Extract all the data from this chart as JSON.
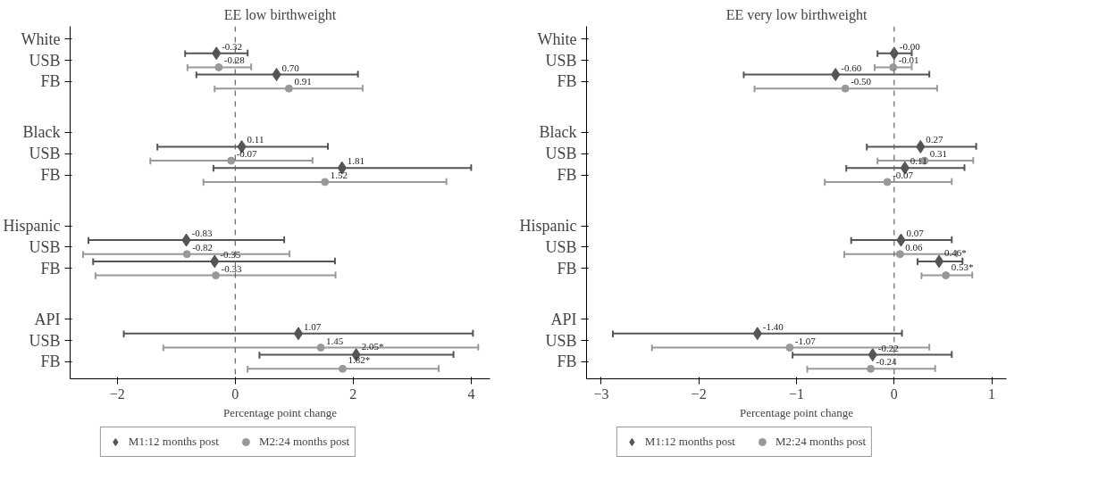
{
  "chart_data": [
    {
      "type": "scatter",
      "orientation": "horizontal",
      "title": "EE low birthweight",
      "xlabel": "Percentage point change",
      "categories": [
        "White",
        "USB",
        "FB",
        "Black",
        "USB",
        "FB",
        "Hispanic",
        "USB",
        "FB",
        "API",
        "USB",
        "FB"
      ],
      "xlim": [
        -2.8,
        4.32
      ],
      "xticks": [
        -2,
        0,
        2,
        4
      ],
      "legend": "bottom",
      "grid": false,
      "ref_lines": [
        {
          "axis": "x",
          "value": 0,
          "line_style": "dashed",
          "color": "#666666"
        }
      ],
      "series": [
        {
          "name": "M1:12 months post",
          "color": "#555555",
          "marker": "diamond",
          "values": [
            null,
            -0.32,
            0.7,
            null,
            0.11,
            1.81,
            null,
            -0.83,
            -0.35,
            null,
            1.07,
            2.05
          ],
          "errors": [
            null,
            [
              -0.85,
              0.21
            ],
            [
              -0.66,
              2.08
            ],
            null,
            [
              -1.32,
              1.57
            ],
            [
              -0.37,
              4.0
            ],
            null,
            [
              -2.49,
              0.83
            ],
            [
              -2.41,
              1.69
            ],
            null,
            [
              -1.89,
              4.03
            ],
            [
              0.41,
              3.7
            ]
          ],
          "value_labels": [
            null,
            "-0.32",
            "0.70",
            null,
            "0.11",
            "1.81",
            null,
            "-0.83",
            "-0.35",
            null,
            "1.07",
            "2.05*"
          ]
        },
        {
          "name": "M2:24 months post",
          "color": "#999999",
          "marker": "circle",
          "values": [
            null,
            -0.28,
            0.91,
            null,
            -0.07,
            1.52,
            null,
            -0.82,
            -0.33,
            null,
            1.45,
            1.82
          ],
          "errors": [
            null,
            [
              -0.81,
              0.27
            ],
            [
              -0.35,
              2.16
            ],
            null,
            [
              -1.44,
              1.31
            ],
            [
              -0.54,
              3.58
            ],
            null,
            [
              -2.58,
              0.92
            ],
            [
              -2.37,
              1.7
            ],
            null,
            [
              -1.22,
              4.12
            ],
            [
              0.21,
              3.45
            ]
          ],
          "value_labels": [
            null,
            "-0.28",
            "0.91",
            null,
            "-0.07",
            "1.52",
            null,
            "-0.82",
            "-0.33",
            null,
            "1.45",
            "1.82*"
          ]
        }
      ]
    },
    {
      "type": "scatter",
      "orientation": "horizontal",
      "title": "EE very low birthweight",
      "xlabel": "Percentage point change",
      "categories": [
        "White",
        "USB",
        "FB",
        "Black",
        "USB",
        "FB",
        "Hispanic",
        "USB",
        "FB",
        "API",
        "USB",
        "FB"
      ],
      "xlim": [
        -3.15,
        1.15
      ],
      "xticks": [
        -3,
        -2,
        -1,
        0,
        1
      ],
      "legend": "bottom",
      "grid": false,
      "ref_lines": [
        {
          "axis": "x",
          "value": 0,
          "line_style": "dashed",
          "color": "#666666"
        }
      ],
      "series": [
        {
          "name": "M1:12 months post",
          "color": "#555555",
          "marker": "diamond",
          "values": [
            null,
            -0.0,
            -0.6,
            null,
            0.27,
            0.11,
            null,
            0.07,
            0.46,
            null,
            -1.4,
            -0.22
          ],
          "errors": [
            null,
            [
              -0.17,
              0.18
            ],
            [
              -1.54,
              0.36
            ],
            null,
            [
              -0.28,
              0.84
            ],
            [
              -0.49,
              0.72
            ],
            null,
            [
              -0.44,
              0.59
            ],
            [
              0.24,
              0.7
            ],
            null,
            [
              -2.88,
              0.08
            ],
            [
              -1.04,
              0.59
            ]
          ],
          "value_labels": [
            null,
            "-0.00",
            "-0.60",
            null,
            "0.27",
            "0.11",
            null,
            "0.07",
            "0.46*",
            null,
            "-1.40",
            "-0.22"
          ]
        },
        {
          "name": "M2:24 months post",
          "color": "#999999",
          "marker": "circle",
          "values": [
            null,
            -0.01,
            -0.5,
            null,
            0.31,
            -0.07,
            null,
            0.06,
            0.53,
            null,
            -1.07,
            -0.24
          ],
          "errors": [
            null,
            [
              -0.2,
              0.18
            ],
            [
              -1.43,
              0.44
            ],
            null,
            [
              -0.17,
              0.81
            ],
            [
              -0.71,
              0.59
            ],
            null,
            [
              -0.51,
              0.64
            ],
            [
              0.28,
              0.8
            ],
            null,
            [
              -2.48,
              0.36
            ],
            [
              -0.89,
              0.42
            ]
          ],
          "value_labels": [
            null,
            "-0.01",
            "-0.50",
            null,
            "0.31",
            "-0.07",
            null,
            "0.06",
            "0.53*",
            null,
            "-1.07",
            "-0.24"
          ]
        }
      ]
    }
  ]
}
